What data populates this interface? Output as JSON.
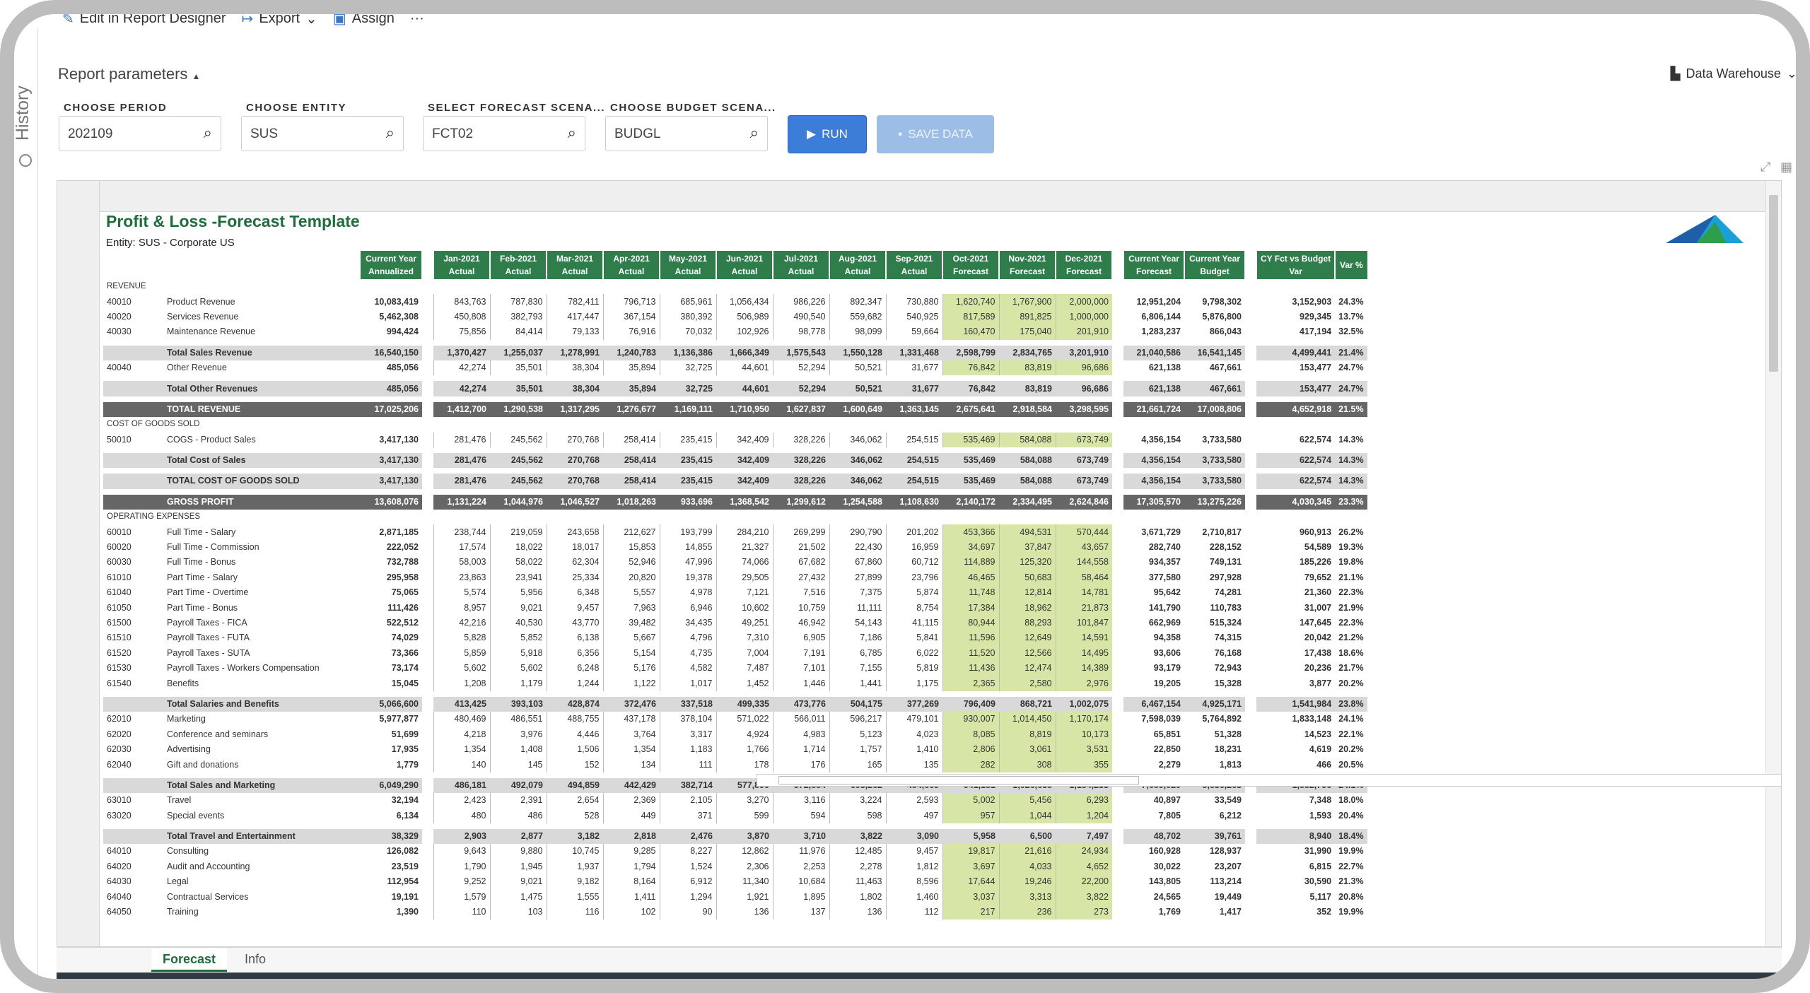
{
  "toolbar": {
    "edit": "Edit in Report Designer",
    "export": "Export",
    "assign": "Assign",
    "more": "···"
  },
  "history": {
    "label": "History"
  },
  "params": {
    "title": "Report parameters",
    "data_source": "Data Warehouse",
    "fields": [
      {
        "label": "CHOOSE PERIOD",
        "value": "202109"
      },
      {
        "label": "CHOOSE ENTITY",
        "value": "SUS"
      },
      {
        "label": "SELECT FORECAST SCENA...",
        "value": "FCT02"
      },
      {
        "label": "CHOOSE BUDGET SCENA...",
        "value": "BUDGL"
      }
    ],
    "run": "RUN",
    "save": "SAVE DATA"
  },
  "report": {
    "title": "Profit & Loss -Forecast Template",
    "entity": "Entity: SUS - Corporate US",
    "headers": [
      [
        "Current Year",
        "Annualized"
      ],
      [
        "Jan-2021",
        "Actual"
      ],
      [
        "Feb-2021",
        "Actual"
      ],
      [
        "Mar-2021",
        "Actual"
      ],
      [
        "Apr-2021",
        "Actual"
      ],
      [
        "May-2021",
        "Actual"
      ],
      [
        "Jun-2021",
        "Actual"
      ],
      [
        "Jul-2021",
        "Actual"
      ],
      [
        "Aug-2021",
        "Actual"
      ],
      [
        "Sep-2021",
        "Actual"
      ],
      [
        "Oct-2021",
        "Forecast"
      ],
      [
        "Nov-2021",
        "Forecast"
      ],
      [
        "Dec-2021",
        "Forecast"
      ],
      [
        "Current Year",
        "Forecast"
      ],
      [
        "Current Year",
        "Budget"
      ],
      [
        "CY Fct vs Budget",
        "Var"
      ],
      [
        "",
        "Var %"
      ]
    ],
    "rows": [
      {
        "t": "sec",
        "name": "REVENUE"
      },
      {
        "t": "d",
        "acct": "40010",
        "name": "Product Revenue",
        "v": [
          "10,083,419",
          "843,763",
          "787,830",
          "782,411",
          "796,713",
          "685,961",
          "1,056,434",
          "986,226",
          "892,347",
          "730,880",
          "1,620,740",
          "1,767,900",
          "2,000,000",
          "12,951,204",
          "9,798,302",
          "3,152,903",
          "24.3%"
        ]
      },
      {
        "t": "d",
        "acct": "40020",
        "name": "Services Revenue",
        "v": [
          "5,462,308",
          "450,808",
          "382,793",
          "417,447",
          "367,154",
          "380,392",
          "506,989",
          "490,540",
          "559,682",
          "540,925",
          "817,589",
          "891,825",
          "1,000,000",
          "6,806,144",
          "5,876,800",
          "929,345",
          "13.7%"
        ]
      },
      {
        "t": "d",
        "acct": "40030",
        "name": "Maintenance Revenue",
        "v": [
          "994,424",
          "75,856",
          "84,414",
          "79,133",
          "76,916",
          "70,032",
          "102,926",
          "98,778",
          "98,099",
          "59,664",
          "160,470",
          "175,040",
          "201,910",
          "1,283,237",
          "866,043",
          "417,194",
          "32.5%"
        ]
      },
      {
        "t": "sp"
      },
      {
        "t": "tot",
        "name": "Total Sales Revenue",
        "v": [
          "16,540,150",
          "1,370,427",
          "1,255,037",
          "1,278,991",
          "1,240,783",
          "1,136,386",
          "1,666,349",
          "1,575,543",
          "1,550,128",
          "1,331,468",
          "2,598,799",
          "2,834,765",
          "3,201,910",
          "21,040,586",
          "16,541,145",
          "4,499,441",
          "21.4%"
        ]
      },
      {
        "t": "d",
        "acct": "40040",
        "name": "Other Revenue",
        "v": [
          "485,056",
          "42,274",
          "35,501",
          "38,304",
          "35,894",
          "32,725",
          "44,601",
          "52,294",
          "50,521",
          "31,677",
          "76,842",
          "83,819",
          "96,686",
          "621,138",
          "467,661",
          "153,477",
          "24.7%"
        ]
      },
      {
        "t": "sp"
      },
      {
        "t": "tot",
        "name": "Total Other Revenues",
        "v": [
          "485,056",
          "42,274",
          "35,501",
          "38,304",
          "35,894",
          "32,725",
          "44,601",
          "52,294",
          "50,521",
          "31,677",
          "76,842",
          "83,819",
          "96,686",
          "621,138",
          "467,661",
          "153,477",
          "24.7%"
        ]
      },
      {
        "t": "sp"
      },
      {
        "t": "gt",
        "name": "TOTAL REVENUE",
        "v": [
          "17,025,206",
          "1,412,700",
          "1,290,538",
          "1,317,295",
          "1,276,677",
          "1,169,111",
          "1,710,950",
          "1,627,837",
          "1,600,649",
          "1,363,145",
          "2,675,641",
          "2,918,584",
          "3,298,595",
          "21,661,724",
          "17,008,806",
          "4,652,918",
          "21.5%"
        ]
      },
      {
        "t": "sec",
        "name": "COST OF GOODS SOLD"
      },
      {
        "t": "d",
        "acct": "50010",
        "name": "COGS - Product Sales",
        "v": [
          "3,417,130",
          "281,476",
          "245,562",
          "270,768",
          "258,414",
          "235,415",
          "342,409",
          "328,226",
          "346,062",
          "254,515",
          "535,469",
          "584,088",
          "673,749",
          "4,356,154",
          "3,733,580",
          "622,574",
          "14.3%"
        ]
      },
      {
        "t": "sp"
      },
      {
        "t": "tot",
        "name": "Total Cost of Sales",
        "v": [
          "3,417,130",
          "281,476",
          "245,562",
          "270,768",
          "258,414",
          "235,415",
          "342,409",
          "328,226",
          "346,062",
          "254,515",
          "535,469",
          "584,088",
          "673,749",
          "4,356,154",
          "3,733,580",
          "622,574",
          "14.3%"
        ]
      },
      {
        "t": "sp"
      },
      {
        "t": "tot",
        "name": "TOTAL COST OF GOODS SOLD",
        "v": [
          "3,417,130",
          "281,476",
          "245,562",
          "270,768",
          "258,414",
          "235,415",
          "342,409",
          "328,226",
          "346,062",
          "254,515",
          "535,469",
          "584,088",
          "673,749",
          "4,356,154",
          "3,733,580",
          "622,574",
          "14.3%"
        ]
      },
      {
        "t": "sp"
      },
      {
        "t": "gt",
        "name": "GROSS PROFIT",
        "v": [
          "13,608,076",
          "1,131,224",
          "1,044,976",
          "1,046,527",
          "1,018,263",
          "933,696",
          "1,368,542",
          "1,299,612",
          "1,254,588",
          "1,108,630",
          "2,140,172",
          "2,334,495",
          "2,624,846",
          "17,305,570",
          "13,275,226",
          "4,030,345",
          "23.3%"
        ]
      },
      {
        "t": "sec",
        "name": "OPERATING EXPENSES"
      },
      {
        "t": "d",
        "acct": "60010",
        "name": "Full Time - Salary",
        "v": [
          "2,871,185",
          "238,744",
          "219,059",
          "243,658",
          "212,627",
          "193,799",
          "284,210",
          "269,299",
          "290,790",
          "201,202",
          "453,366",
          "494,531",
          "570,444",
          "3,671,729",
          "2,710,817",
          "960,913",
          "26.2%"
        ]
      },
      {
        "t": "d",
        "acct": "60020",
        "name": "Full Time - Commission",
        "v": [
          "222,052",
          "17,574",
          "18,022",
          "18,017",
          "15,853",
          "14,855",
          "21,327",
          "21,502",
          "22,430",
          "16,959",
          "34,697",
          "37,847",
          "43,657",
          "282,740",
          "228,152",
          "54,589",
          "19.3%"
        ]
      },
      {
        "t": "d",
        "acct": "60030",
        "name": "Full Time - Bonus",
        "v": [
          "732,788",
          "58,003",
          "58,022",
          "62,304",
          "52,946",
          "47,996",
          "74,066",
          "67,682",
          "67,860",
          "60,712",
          "114,889",
          "125,320",
          "144,558",
          "934,357",
          "749,131",
          "185,226",
          "19.8%"
        ]
      },
      {
        "t": "d",
        "acct": "61010",
        "name": "Part Time - Salary",
        "v": [
          "295,958",
          "23,863",
          "23,941",
          "25,334",
          "20,820",
          "19,378",
          "29,505",
          "27,432",
          "27,899",
          "23,796",
          "46,465",
          "50,683",
          "58,464",
          "377,580",
          "297,928",
          "79,652",
          "21.1%"
        ]
      },
      {
        "t": "d",
        "acct": "61040",
        "name": "Part Time - Overtime",
        "v": [
          "75,065",
          "5,574",
          "5,956",
          "6,348",
          "5,557",
          "4,978",
          "7,121",
          "7,516",
          "7,375",
          "5,874",
          "11,748",
          "12,814",
          "14,781",
          "95,642",
          "74,281",
          "21,360",
          "22.3%"
        ]
      },
      {
        "t": "d",
        "acct": "61050",
        "name": "Part Time - Bonus",
        "v": [
          "111,426",
          "8,957",
          "9,021",
          "9,457",
          "7,963",
          "6,946",
          "10,602",
          "10,759",
          "11,111",
          "8,754",
          "17,384",
          "18,962",
          "21,873",
          "141,790",
          "110,783",
          "31,007",
          "21.9%"
        ]
      },
      {
        "t": "d",
        "acct": "61500",
        "name": "Payroll Taxes - FICA",
        "v": [
          "522,512",
          "42,216",
          "40,530",
          "43,770",
          "39,482",
          "34,435",
          "49,251",
          "46,942",
          "54,143",
          "41,115",
          "80,944",
          "88,293",
          "101,847",
          "662,969",
          "515,324",
          "147,645",
          "22.3%"
        ]
      },
      {
        "t": "d",
        "acct": "61510",
        "name": "Payroll Taxes - FUTA",
        "v": [
          "74,029",
          "5,828",
          "5,852",
          "6,138",
          "5,667",
          "4,796",
          "7,310",
          "6,905",
          "7,186",
          "5,841",
          "11,596",
          "12,649",
          "14,591",
          "94,358",
          "74,315",
          "20,042",
          "21.2%"
        ]
      },
      {
        "t": "d",
        "acct": "61520",
        "name": "Payroll Taxes - SUTA",
        "v": [
          "73,366",
          "5,859",
          "5,918",
          "6,356",
          "5,154",
          "4,735",
          "7,004",
          "7,191",
          "6,785",
          "6,022",
          "11,520",
          "12,566",
          "14,495",
          "93,606",
          "76,168",
          "17,438",
          "18.6%"
        ]
      },
      {
        "t": "d",
        "acct": "61530",
        "name": "Payroll Taxes - Workers Compensation",
        "v": [
          "73,174",
          "5,602",
          "5,602",
          "6,248",
          "5,176",
          "4,582",
          "7,487",
          "7,101",
          "7,155",
          "5,819",
          "11,436",
          "12,474",
          "14,389",
          "93,179",
          "72,943",
          "20,236",
          "21.7%"
        ]
      },
      {
        "t": "d",
        "acct": "61540",
        "name": "Benefits",
        "v": [
          "15,045",
          "1,208",
          "1,179",
          "1,244",
          "1,122",
          "1,017",
          "1,452",
          "1,446",
          "1,441",
          "1,175",
          "2,365",
          "2,580",
          "2,976",
          "19,205",
          "15,328",
          "3,877",
          "20.2%"
        ]
      },
      {
        "t": "sp"
      },
      {
        "t": "tot",
        "name": "Total Salaries and Benefits",
        "v": [
          "5,066,600",
          "413,425",
          "393,103",
          "428,874",
          "372,476",
          "337,518",
          "499,335",
          "473,776",
          "504,175",
          "377,269",
          "796,409",
          "868,721",
          "1,002,075",
          "6,467,154",
          "4,925,171",
          "1,541,984",
          "23.8%"
        ]
      },
      {
        "t": "d",
        "acct": "62010",
        "name": "Marketing",
        "v": [
          "5,977,877",
          "480,469",
          "486,551",
          "488,755",
          "437,178",
          "378,104",
          "571,022",
          "566,011",
          "596,217",
          "479,101",
          "930,007",
          "1,014,450",
          "1,170,174",
          "7,598,039",
          "5,764,892",
          "1,833,148",
          "24.1%"
        ]
      },
      {
        "t": "d",
        "acct": "62020",
        "name": "Conference and seminars",
        "v": [
          "51,699",
          "4,218",
          "3,976",
          "4,446",
          "3,764",
          "3,317",
          "4,924",
          "4,983",
          "5,123",
          "4,023",
          "8,085",
          "8,819",
          "10,173",
          "65,851",
          "51,328",
          "14,523",
          "22.1%"
        ]
      },
      {
        "t": "d",
        "acct": "62030",
        "name": "Advertising",
        "v": [
          "17,935",
          "1,354",
          "1,408",
          "1,506",
          "1,354",
          "1,183",
          "1,766",
          "1,714",
          "1,757",
          "1,410",
          "2,806",
          "3,061",
          "3,531",
          "22,850",
          "18,231",
          "4,619",
          "20.2%"
        ]
      },
      {
        "t": "d",
        "acct": "62040",
        "name": "Gift and donations",
        "v": [
          "1,779",
          "140",
          "145",
          "152",
          "134",
          "111",
          "178",
          "176",
          "165",
          "135",
          "282",
          "308",
          "355",
          "2,279",
          "1,813",
          "466",
          "20.5%"
        ]
      },
      {
        "t": "sp"
      },
      {
        "t": "tot",
        "name": "Total Sales and Marketing",
        "v": [
          "6,049,290",
          "486,181",
          "492,079",
          "494,859",
          "442,429",
          "382,714",
          "577,890",
          "572,884",
          "603,262",
          "484,669",
          "941,181",
          "1,026,638",
          "1,184,233",
          "7,689,020",
          "5,836,263",
          "1,852,756",
          "24.1%"
        ]
      },
      {
        "t": "d",
        "acct": "63010",
        "name": "Travel",
        "v": [
          "32,194",
          "2,423",
          "2,391",
          "2,654",
          "2,369",
          "2,105",
          "3,270",
          "3,116",
          "3,224",
          "2,593",
          "5,002",
          "5,456",
          "6,293",
          "40,897",
          "33,549",
          "7,348",
          "18.0%"
        ]
      },
      {
        "t": "d",
        "acct": "63020",
        "name": "Special events",
        "v": [
          "6,134",
          "480",
          "486",
          "528",
          "449",
          "371",
          "599",
          "594",
          "598",
          "497",
          "957",
          "1,044",
          "1,204",
          "7,805",
          "6,212",
          "1,593",
          "20.4%"
        ]
      },
      {
        "t": "sp"
      },
      {
        "t": "tot",
        "name": "Total Travel and Entertainment",
        "v": [
          "38,329",
          "2,903",
          "2,877",
          "3,182",
          "2,818",
          "2,476",
          "3,870",
          "3,710",
          "3,822",
          "3,090",
          "5,958",
          "6,500",
          "7,497",
          "48,702",
          "39,761",
          "8,940",
          "18.4%"
        ]
      },
      {
        "t": "d",
        "acct": "64010",
        "name": "Consulting",
        "v": [
          "126,082",
          "9,643",
          "9,880",
          "10,745",
          "9,285",
          "8,227",
          "12,862",
          "11,976",
          "12,485",
          "9,457",
          "19,817",
          "21,616",
          "24,934",
          "160,928",
          "128,937",
          "31,990",
          "19.9%"
        ]
      },
      {
        "t": "d",
        "acct": "64020",
        "name": "Audit and Accounting",
        "v": [
          "23,519",
          "1,790",
          "1,945",
          "1,937",
          "1,794",
          "1,524",
          "2,306",
          "2,253",
          "2,278",
          "1,812",
          "3,697",
          "4,033",
          "4,652",
          "30,022",
          "23,207",
          "6,815",
          "22.7%"
        ]
      },
      {
        "t": "d",
        "acct": "64030",
        "name": "Legal",
        "v": [
          "112,954",
          "9,252",
          "9,021",
          "9,182",
          "8,164",
          "6,912",
          "11,340",
          "10,684",
          "11,463",
          "8,596",
          "17,644",
          "19,246",
          "22,200",
          "143,805",
          "113,214",
          "30,590",
          "21.3%"
        ]
      },
      {
        "t": "d",
        "acct": "64040",
        "name": "Contractual Services",
        "v": [
          "19,191",
          "1,579",
          "1,475",
          "1,555",
          "1,411",
          "1,294",
          "1,921",
          "1,895",
          "1,802",
          "1,460",
          "3,037",
          "3,313",
          "3,822",
          "24,565",
          "19,449",
          "5,117",
          "20.8%"
        ]
      },
      {
        "t": "d",
        "acct": "64050",
        "name": "Training",
        "v": [
          "1,390",
          "110",
          "103",
          "116",
          "102",
          "90",
          "136",
          "137",
          "136",
          "112",
          "217",
          "236",
          "273",
          "1,769",
          "1,417",
          "352",
          "19.9%"
        ]
      }
    ]
  },
  "tabs": [
    {
      "label": "Forecast"
    },
    {
      "label": "Info"
    }
  ],
  "colors": {
    "green": "#2e7d4b",
    "forecast": "#d7e6a6",
    "run": "#3b7dd8"
  }
}
